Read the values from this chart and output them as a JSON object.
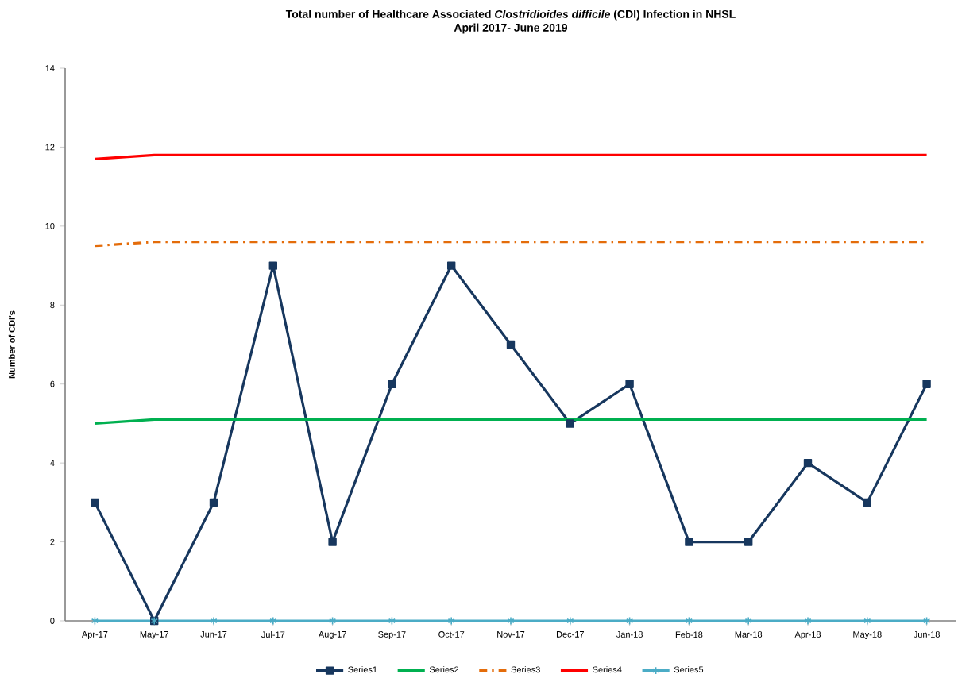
{
  "chart_data": {
    "type": "line",
    "title": "Total number of Healthcare Associated *Clostridioides difficile* (CDI) Infection in NHSL",
    "subtitle": "April 2017- June 2019",
    "ylabel": "Number of CDI's",
    "categories": [
      "Apr-17",
      "May-17",
      "Jun-17",
      "Jul-17",
      "Aug-17",
      "Sep-17",
      "Oct-17",
      "Nov-17",
      "Dec-17",
      "Jan-18",
      "Feb-18",
      "Mar-18",
      "Apr-18",
      "May-18",
      "Jun-18"
    ],
    "ylim": [
      0,
      14
    ],
    "yticks": [
      0,
      2,
      4,
      6,
      8,
      10,
      12,
      14
    ],
    "grid": false,
    "legend": "bottom",
    "series": [
      {
        "name": "Series1",
        "color": "#17375e",
        "marker": "square",
        "line_style": "solid",
        "values": [
          3,
          0,
          3,
          9,
          2,
          6,
          9,
          7,
          5,
          6,
          2,
          2,
          4,
          3,
          6
        ]
      },
      {
        "name": "Series2",
        "color": "#00b050",
        "marker": "none",
        "line_style": "solid",
        "values": [
          5.0,
          5.1,
          5.1,
          5.1,
          5.1,
          5.1,
          5.1,
          5.1,
          5.1,
          5.1,
          5.1,
          5.1,
          5.1,
          5.1,
          5.1
        ]
      },
      {
        "name": "Series3",
        "color": "#e46c0a",
        "marker": "none",
        "line_style": "dashdot",
        "values": [
          9.5,
          9.6,
          9.6,
          9.6,
          9.6,
          9.6,
          9.6,
          9.6,
          9.6,
          9.6,
          9.6,
          9.6,
          9.6,
          9.6,
          9.6
        ]
      },
      {
        "name": "Series4",
        "color": "#ff0000",
        "marker": "none",
        "line_style": "solid",
        "values": [
          11.7,
          11.8,
          11.8,
          11.8,
          11.8,
          11.8,
          11.8,
          11.8,
          11.8,
          11.8,
          11.8,
          11.8,
          11.8,
          11.8,
          11.8
        ]
      },
      {
        "name": "Series5",
        "color": "#4bacc6",
        "marker": "cross",
        "line_style": "solid",
        "values": [
          0,
          0,
          0,
          0,
          0,
          0,
          0,
          0,
          0,
          0,
          0,
          0,
          0,
          0,
          0
        ]
      }
    ]
  }
}
